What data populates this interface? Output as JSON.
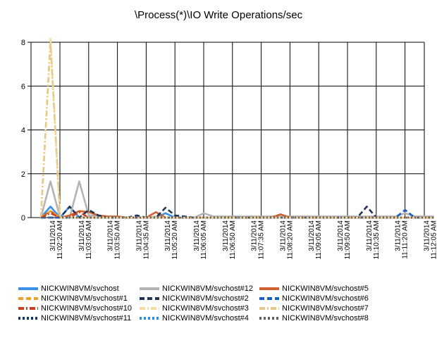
{
  "chart_data": {
    "type": "line",
    "title": "\\Process(*)\\IO Write Operations/sec",
    "ylim": [
      0,
      8
    ],
    "yticks": [
      0,
      2,
      4,
      6,
      8
    ],
    "grid": true,
    "legend_position": "bottom",
    "x_tick_labels": [
      [
        "3/11/2014",
        "11:02:20 AM"
      ],
      [
        "3/11/2014",
        "11:03:05 AM"
      ],
      [
        "3/11/2014",
        "11:03:50 AM"
      ],
      [
        "3/11/2014",
        "11:04:35 AM"
      ],
      [
        "3/11/2014",
        "11:05:20 AM"
      ],
      [
        "3/11/2014",
        "11:06:05 AM"
      ],
      [
        "3/11/2014",
        "11:06:50 AM"
      ],
      [
        "3/11/2014",
        "11:07:35 AM"
      ],
      [
        "3/11/2014",
        "11:08:20 AM"
      ],
      [
        "3/11/2014",
        "11:09:05 AM"
      ],
      [
        "3/11/2014",
        "11:09:50 AM"
      ],
      [
        "3/11/2014",
        "11:10:35 AM"
      ],
      [
        "3/11/2014",
        "11:11:20 AM"
      ],
      [
        "3/11/2014",
        "11:12:05 AM"
      ]
    ],
    "x": [
      "11:01:50",
      "11:02:05",
      "11:02:20",
      "11:02:35",
      "11:02:50",
      "11:03:05",
      "11:03:20",
      "11:03:35",
      "11:03:50",
      "11:04:05",
      "11:04:20",
      "11:04:35",
      "11:04:50",
      "11:05:05",
      "11:05:20",
      "11:05:35",
      "11:05:50",
      "11:06:05",
      "11:06:20",
      "11:06:35",
      "11:06:50",
      "11:07:05",
      "11:07:20",
      "11:07:35",
      "11:07:50",
      "11:08:05",
      "11:08:20",
      "11:08:35",
      "11:08:50",
      "11:09:05",
      "11:09:20",
      "11:09:35",
      "11:09:50",
      "11:10:05",
      "11:10:20",
      "11:10:35",
      "11:10:50",
      "11:11:05",
      "11:11:20",
      "11:11:35",
      "11:11:50",
      "11:12:05"
    ],
    "series": [
      {
        "name": "NICKWIN8VM/svchost",
        "color": "#3a8fe8",
        "dash": "solid",
        "values": [
          0,
          0.5,
          0,
          0.5,
          0,
          0,
          0,
          0,
          0,
          0,
          0,
          0,
          0,
          0.2,
          0,
          0,
          0,
          0,
          0,
          0,
          0,
          0,
          0,
          0,
          0,
          0,
          0,
          0,
          0,
          0,
          0,
          0,
          0,
          0,
          0,
          0,
          0,
          0,
          0,
          0,
          0,
          0
        ]
      },
      {
        "name": "NICKWIN8VM/svchost#12",
        "color": "#b4b4b4",
        "dash": "solid",
        "values": [
          0,
          1.65,
          0,
          0,
          1.65,
          0.1,
          0.1,
          0,
          0.05,
          0,
          0,
          0,
          0.05,
          0,
          0,
          0,
          0,
          0.2,
          0.05,
          0.05,
          0.05,
          0.05,
          0.05,
          0.05,
          0.05,
          0.05,
          0.05,
          0.05,
          0.05,
          0.05,
          0.05,
          0.05,
          0.05,
          0.05,
          0.05,
          0.05,
          0.05,
          0.05,
          0.2,
          0.05,
          0.05,
          0.05
        ]
      },
      {
        "name": "NICKWIN8VM/svchost#5",
        "color": "#d06030",
        "dash": "solid",
        "values": [
          0,
          0.3,
          0,
          0.1,
          0.3,
          0.25,
          0.1,
          0.05,
          0.05,
          0,
          0,
          0,
          0.25,
          0,
          0,
          0,
          0,
          0,
          0,
          0,
          0,
          0,
          0,
          0,
          0,
          0.15,
          0,
          0,
          0,
          0,
          0,
          0,
          0,
          0,
          0,
          0,
          0,
          0,
          0,
          0,
          0,
          0
        ]
      },
      {
        "name": "NICKWIN8VM/svchost#1",
        "color": "#f0a020",
        "dash": "dash",
        "values": [
          0,
          0.3,
          0,
          0,
          0,
          0,
          0,
          0,
          0,
          0,
          0,
          0,
          0,
          0,
          0,
          0,
          0,
          0,
          0,
          0,
          0,
          0,
          0,
          0,
          0,
          0,
          0,
          0,
          0,
          0,
          0,
          0,
          0,
          0,
          0,
          0,
          0,
          0,
          0,
          0,
          0,
          0
        ]
      },
      {
        "name": "NICKWIN8VM/svchost#2",
        "color": "#1c3556",
        "dash": "dash",
        "values": [
          0,
          0,
          0,
          0.5,
          0,
          0.35,
          0.1,
          0,
          0,
          0,
          0.1,
          0,
          0,
          0.45,
          0.1,
          0.05,
          0,
          0,
          0,
          0,
          0,
          0,
          0,
          0,
          0,
          0,
          0,
          0,
          0,
          0,
          0,
          0,
          0,
          0,
          0.5,
          0,
          0,
          0,
          0,
          0,
          0,
          0
        ]
      },
      {
        "name": "NICKWIN8VM/svchost#6",
        "color": "#1a5fc8",
        "dash": "dash",
        "values": [
          0,
          0,
          0,
          0,
          0,
          0,
          0,
          0,
          0,
          0,
          0,
          0,
          0,
          0,
          0,
          0,
          0,
          0,
          0,
          0,
          0,
          0,
          0,
          0,
          0,
          0,
          0,
          0,
          0,
          0,
          0,
          0,
          0,
          0,
          0,
          0,
          0,
          0,
          0.35,
          0,
          0,
          0
        ]
      },
      {
        "name": "NICKWIN8VM/svchost#10",
        "color": "#c84020",
        "dash": "dashdot",
        "values": [
          0,
          0.2,
          0,
          0,
          0.25,
          0,
          0,
          0,
          0,
          0,
          0,
          0,
          0,
          0,
          0,
          0,
          0,
          0,
          0,
          0,
          0,
          0,
          0,
          0,
          0,
          0,
          0,
          0,
          0,
          0,
          0,
          0,
          0,
          0,
          0,
          0,
          0,
          0,
          0,
          0,
          0,
          0
        ]
      },
      {
        "name": "NICKWIN8VM/svchost#3",
        "color": "#f4dc9c",
        "dash": "dashdot",
        "values": [
          0,
          8.2,
          0,
          0,
          0,
          0,
          0,
          0,
          0,
          0,
          0,
          0,
          0,
          0,
          0,
          0,
          0,
          0,
          0,
          0,
          0,
          0,
          0,
          0,
          0,
          0,
          0,
          0,
          0,
          0,
          0,
          0,
          0,
          0,
          0,
          0,
          0,
          0,
          0,
          0,
          0,
          0
        ]
      },
      {
        "name": "NICKWIN8VM/svchost#7",
        "color": "#e8c888",
        "dash": "dashdot",
        "values": [
          0,
          8,
          0,
          0,
          0,
          0,
          0,
          0,
          0,
          0,
          0,
          0,
          0,
          0,
          0,
          0,
          0,
          0,
          0,
          0,
          0,
          0,
          0,
          0,
          0,
          0,
          0,
          0,
          0,
          0,
          0,
          0,
          0,
          0,
          0,
          0,
          0,
          0,
          0,
          0,
          0,
          0
        ]
      },
      {
        "name": "NICKWIN8VM/svchost#11",
        "color": "#123462",
        "dash": "dot",
        "values": [
          0,
          0,
          0,
          0,
          0,
          0,
          0,
          0,
          0,
          0,
          0,
          0,
          0,
          0,
          0,
          0,
          0,
          0,
          0,
          0,
          0,
          0,
          0,
          0,
          0,
          0,
          0,
          0,
          0,
          0,
          0,
          0,
          0,
          0,
          0,
          0,
          0,
          0,
          0,
          0,
          0,
          0
        ]
      },
      {
        "name": "NICKWIN8VM/svchost#4",
        "color": "#2a90d8",
        "dash": "dot",
        "values": [
          0,
          0,
          0,
          0,
          0,
          0,
          0,
          0,
          0,
          0,
          0,
          0,
          0,
          0,
          0,
          0,
          0,
          0,
          0,
          0,
          0,
          0,
          0,
          0,
          0,
          0,
          0,
          0,
          0,
          0,
          0,
          0,
          0,
          0,
          0,
          0,
          0,
          0,
          0,
          0,
          0,
          0
        ]
      },
      {
        "name": "NICKWIN8VM/svchost#8",
        "color": "#606060",
        "dash": "dot",
        "values": [
          0,
          0,
          0,
          0,
          0,
          0,
          0,
          0,
          0,
          0,
          0,
          0,
          0,
          0,
          0,
          0,
          0,
          0,
          0,
          0,
          0,
          0,
          0,
          0,
          0,
          0,
          0,
          0,
          0,
          0,
          0,
          0,
          0,
          0,
          0,
          0,
          0,
          0,
          0,
          0,
          0,
          0
        ]
      }
    ]
  },
  "legend_layout": [
    [
      "NICKWIN8VM/svchost",
      "NICKWIN8VM/svchost#12",
      "NICKWIN8VM/svchost#5"
    ],
    [
      "NICKWIN8VM/svchost#1",
      "NICKWIN8VM/svchost#2",
      "NICKWIN8VM/svchost#6"
    ],
    [
      "NICKWIN8VM/svchost#10",
      "NICKWIN8VM/svchost#3",
      "NICKWIN8VM/svchost#7"
    ],
    [
      "NICKWIN8VM/svchost#11",
      "NICKWIN8VM/svchost#4",
      "NICKWIN8VM/svchost#8"
    ]
  ]
}
